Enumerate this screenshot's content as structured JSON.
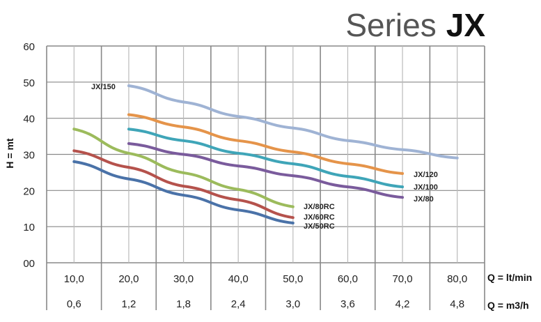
{
  "chart_data": {
    "type": "line",
    "title": "Series JX",
    "title_parts": {
      "light": "Series",
      "bold": "JX"
    },
    "ylabel": "H = mt",
    "xlabel": "Q = lt/min",
    "xlabel_secondary": "Q = m3/h",
    "ylim": [
      0,
      60
    ],
    "xlim": [
      5,
      85
    ],
    "yticks": [
      "00",
      "10",
      "20",
      "30",
      "40",
      "50",
      "60"
    ],
    "xticks": [
      "10,0",
      "20,0",
      "30,0",
      "40,0",
      "50,0",
      "60,0",
      "70,0",
      "80,0"
    ],
    "xticks_secondary": [
      "0,6",
      "1,2",
      "1,8",
      "2,4",
      "3,0",
      "3,6",
      "4,2",
      "4,8"
    ],
    "grid": true,
    "series": [
      {
        "name": "JX/150",
        "color": "#9fb3d4",
        "x": [
          20,
          30,
          40,
          50,
          60,
          70,
          80
        ],
        "y": [
          49,
          44.5,
          40.5,
          37.3,
          33.8,
          31.3,
          29
        ]
      },
      {
        "name": "JX/120",
        "color": "#e5944a",
        "x": [
          20,
          30,
          40,
          50,
          60,
          70
        ],
        "y": [
          41,
          37.6,
          33.8,
          30.7,
          27.4,
          24.7
        ]
      },
      {
        "name": "JX/100",
        "color": "#3fa5b8",
        "x": [
          20,
          30,
          40,
          50,
          60,
          70
        ],
        "y": [
          37,
          33.8,
          30.3,
          27.4,
          23.9,
          21
        ]
      },
      {
        "name": "JX/80",
        "color": "#7a5b9c",
        "x": [
          20,
          30,
          40,
          50,
          60,
          70
        ],
        "y": [
          33,
          30,
          26.8,
          24.1,
          21,
          18.1
        ]
      },
      {
        "name": "JX/80RC",
        "color": "#9cbb5c",
        "x": [
          10,
          20,
          30,
          40,
          50
        ],
        "y": [
          37,
          30.3,
          24.9,
          20.3,
          15.5
        ]
      },
      {
        "name": "JX/60RC",
        "color": "#b5524c",
        "x": [
          10,
          20,
          30,
          40,
          50
        ],
        "y": [
          31,
          26.4,
          21.2,
          17.4,
          12.5
        ]
      },
      {
        "name": "JX/50RC",
        "color": "#4a72a8",
        "x": [
          10,
          20,
          30,
          40,
          50
        ],
        "y": [
          28,
          23.2,
          18.7,
          14.6,
          11
        ]
      }
    ]
  }
}
